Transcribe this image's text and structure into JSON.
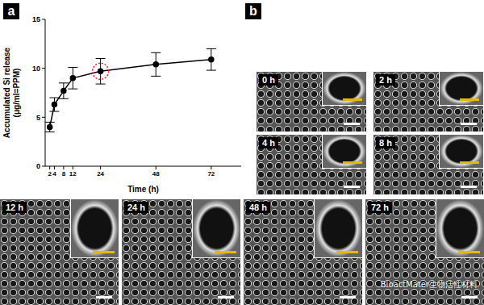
{
  "chart_data": {
    "type": "line",
    "x_label": "Time (h)",
    "y_label": [
      "Accumulated Si release",
      "(μg/ml=PPM)"
    ],
    "x": [
      2,
      4,
      8,
      12,
      24,
      48,
      72
    ],
    "values": [
      4.0,
      6.3,
      7.7,
      9.0,
      9.7,
      10.4,
      10.9
    ],
    "errors": [
      0.5,
      0.7,
      0.8,
      1.1,
      1.3,
      1.2,
      1.1
    ],
    "color": "#000000",
    "marker": "circle",
    "line_style": "solid",
    "xlim": [
      0,
      85
    ],
    "xticks": [
      2,
      4,
      8,
      12,
      24,
      48,
      72
    ],
    "ylim": [
      0,
      15
    ],
    "yticks": [
      0,
      5,
      10,
      15
    ],
    "highlight_x": 24
  },
  "panel_labels": [
    "a",
    "b"
  ],
  "images": [
    {
      "label": "0 h"
    },
    {
      "label": "2 h"
    },
    {
      "label": "4 h"
    },
    {
      "label": "8 h"
    },
    {
      "label": "12 h"
    },
    {
      "label": "24 h"
    },
    {
      "label": "48 h"
    },
    {
      "label": "72 h"
    }
  ],
  "watermark": "BioactMater生物活性材料"
}
